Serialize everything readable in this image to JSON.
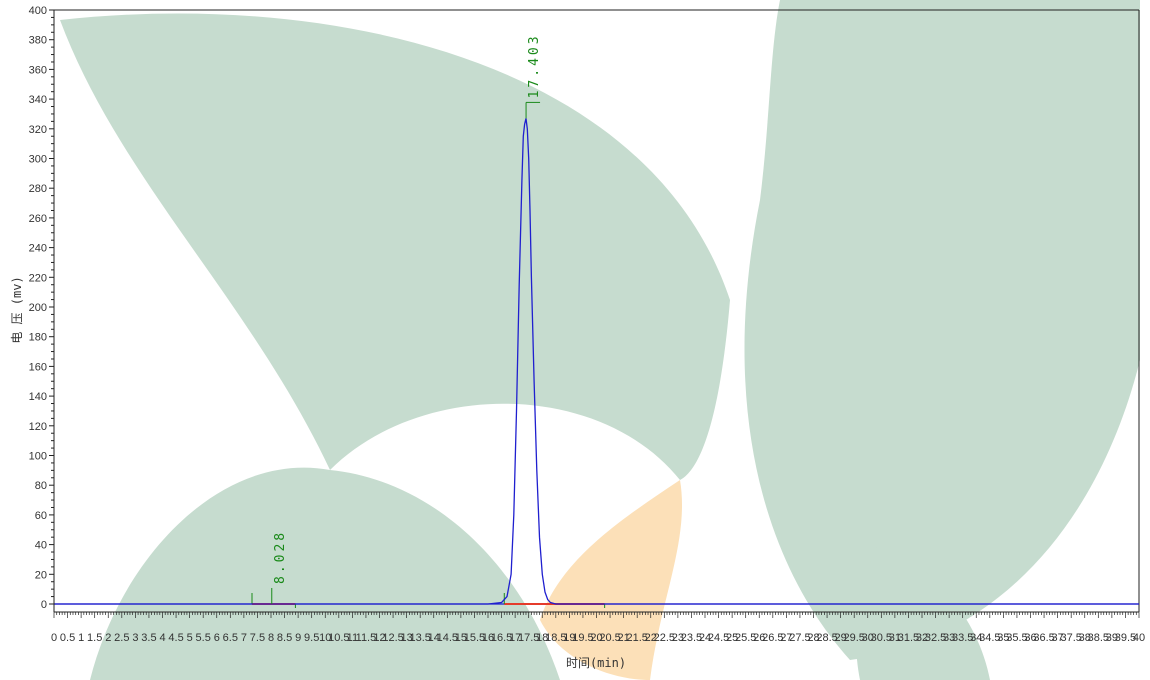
{
  "chart_data": {
    "type": "line",
    "title": "",
    "xlabel": "时间(min)",
    "ylabel": "电 压 (mv)",
    "xlim": [
      0,
      40
    ],
    "ylim": [
      0,
      400
    ],
    "x_ticks": [
      "0",
      "0.5",
      "1",
      "1.5",
      "2",
      "2.5",
      "3",
      "3.5",
      "4",
      "4.5",
      "5",
      "5.5",
      "6",
      "6.5",
      "7",
      "7.5",
      "8",
      "8.5",
      "9",
      "9.5",
      "10",
      "10.5",
      "11",
      "11.5",
      "12",
      "12.5",
      "13",
      "13.5",
      "14",
      "14.5",
      "15",
      "15.5",
      "16",
      "16.5",
      "17",
      "17.5",
      "18",
      "18.5",
      "19",
      "19.5",
      "20",
      "20.5",
      "21",
      "21.5",
      "22",
      "22.5",
      "23",
      "23.5",
      "24",
      "24.5",
      "25",
      "25.5",
      "26",
      "26.5",
      "27",
      "27.5",
      "28",
      "28.5",
      "29",
      "29.5",
      "30",
      "30.5",
      "31",
      "31.5",
      "32",
      "32.5",
      "33",
      "33.5",
      "34",
      "34.5",
      "35",
      "35.5",
      "36",
      "36.5",
      "37",
      "37.5",
      "38",
      "38.5",
      "39",
      "39.5",
      "40"
    ],
    "y_ticks": [
      "0",
      "20",
      "40",
      "60",
      "80",
      "100",
      "120",
      "140",
      "160",
      "180",
      "200",
      "220",
      "240",
      "260",
      "280",
      "300",
      "320",
      "340",
      "360",
      "380",
      "400"
    ],
    "series": [
      {
        "color": "#1f1fcf",
        "x": [
          0,
          16.0,
          16.5,
          16.7,
          16.85,
          16.95,
          17.05,
          17.15,
          17.25,
          17.3,
          17.35,
          17.4,
          17.45,
          17.5,
          17.55,
          17.6,
          17.7,
          17.8,
          17.9,
          18.0,
          18.1,
          18.2,
          18.3,
          18.5,
          40
        ],
        "y": [
          0,
          0,
          1,
          5,
          20,
          60,
          130,
          215,
          285,
          315,
          323,
          327,
          320,
          300,
          265,
          220,
          150,
          90,
          45,
          20,
          8,
          3,
          1,
          0,
          0
        ]
      }
    ],
    "peaks": [
      {
        "rt": "8.028",
        "x": 8.028,
        "y": 0,
        "start": 7.3,
        "end": 8.9
      },
      {
        "rt": "17.403",
        "x": 17.403,
        "y": 327,
        "start": 16.6,
        "end": 20.3
      }
    ],
    "colors": {
      "trace": "#1f1fcf",
      "baseline": "#1f1fcf",
      "integration": "#e53b2b",
      "peak_label": "#1a8a1a",
      "watermark_green": "#c6dccf",
      "watermark_orange": "#fce0b8"
    },
    "grid": false,
    "legend": "none"
  }
}
